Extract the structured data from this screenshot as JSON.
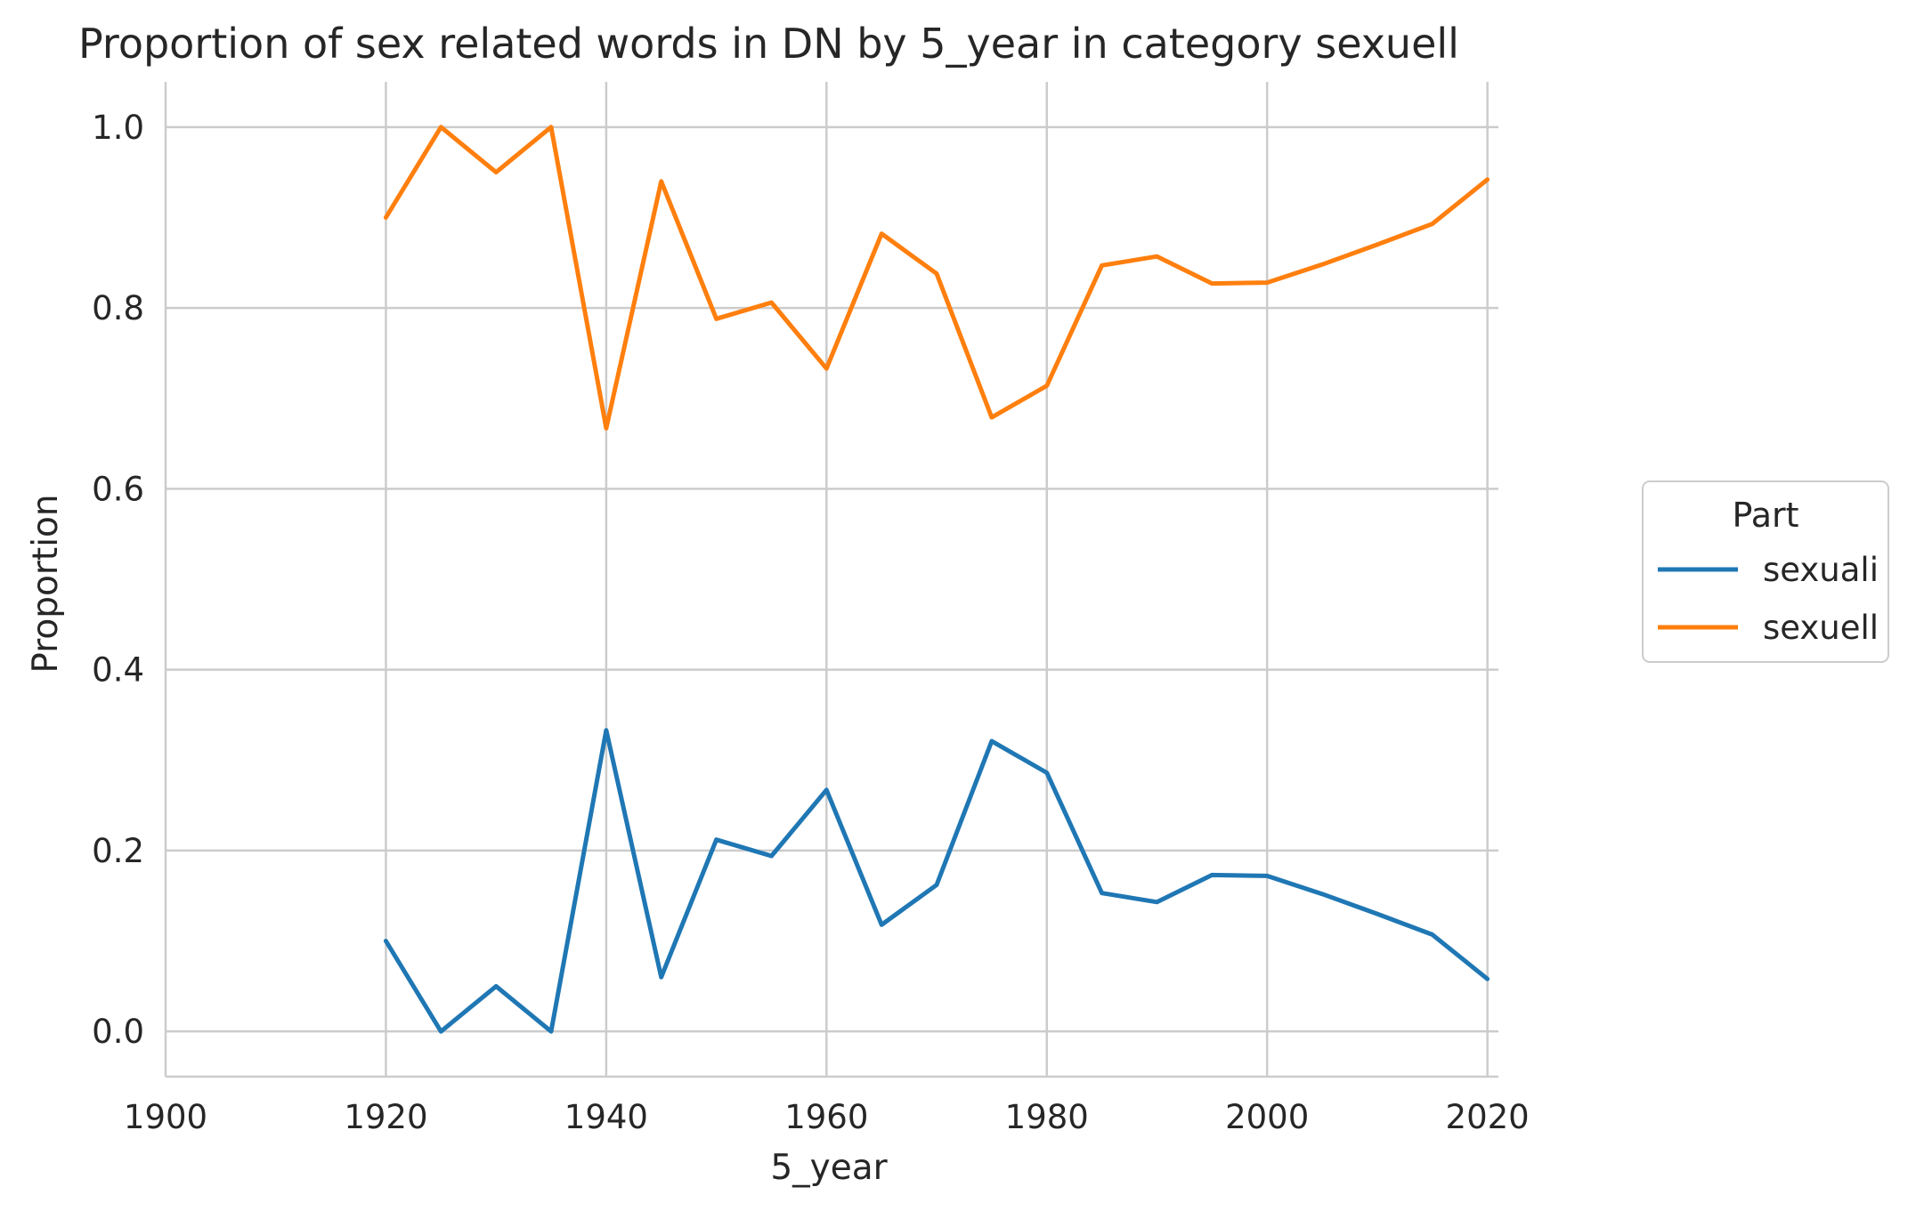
{
  "chart_data": {
    "type": "line",
    "title": "Proportion of sex related words in DN by 5_year in category sexuell",
    "xlabel": "5_year",
    "ylabel": "Proportion",
    "xlim": [
      1900,
      2021
    ],
    "ylim": [
      -0.05,
      1.05
    ],
    "xticks": [
      1900,
      1920,
      1940,
      1960,
      1980,
      2000,
      2020
    ],
    "yticks": [
      0.0,
      0.2,
      0.4,
      0.6,
      0.8,
      1.0
    ],
    "xtick_labels": [
      "1900",
      "1920",
      "1940",
      "1960",
      "1980",
      "2000",
      "2020"
    ],
    "ytick_labels": [
      "0.0",
      "0.2",
      "0.4",
      "0.6",
      "0.8",
      "1.0"
    ],
    "grid": true,
    "legend": {
      "title": "Part",
      "placement": "right"
    },
    "x": [
      1920,
      1925,
      1930,
      1935,
      1940,
      1945,
      1950,
      1955,
      1960,
      1965,
      1970,
      1975,
      1980,
      1985,
      1990,
      1995,
      2000,
      2005,
      2010,
      2015,
      2020
    ],
    "series": [
      {
        "name": "sexuali",
        "color": "#1f77b4",
        "values": [
          0.1,
          0.0,
          0.05,
          0.0,
          0.333,
          0.06,
          0.212,
          0.194,
          0.267,
          0.118,
          0.162,
          0.321,
          0.286,
          0.153,
          0.143,
          0.173,
          0.172,
          0.152,
          0.13,
          0.107,
          0.058
        ]
      },
      {
        "name": "sexuell",
        "color": "#ff7f0e",
        "values": [
          0.9,
          1.0,
          0.95,
          1.0,
          0.667,
          0.94,
          0.788,
          0.806,
          0.733,
          0.882,
          0.838,
          0.679,
          0.714,
          0.847,
          0.857,
          0.827,
          0.828,
          0.848,
          0.87,
          0.893,
          0.942
        ]
      }
    ]
  }
}
